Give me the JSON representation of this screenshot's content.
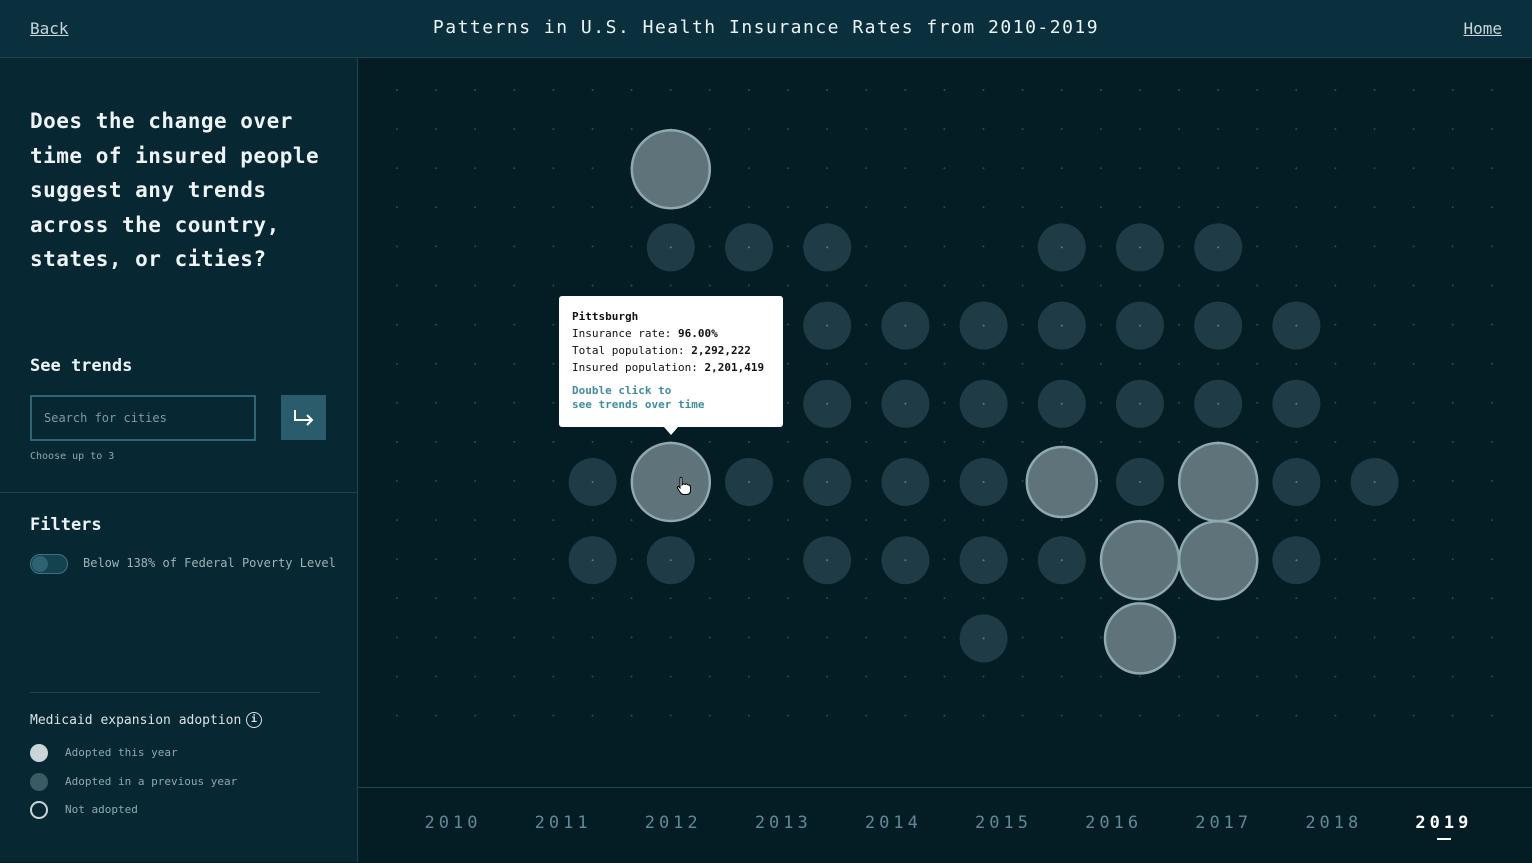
{
  "header": {
    "back_label": "Back",
    "title": "Patterns in U.S. Health Insurance Rates from 2010-2019",
    "home_label": "Home"
  },
  "sidebar": {
    "question": "Does the change over time of insured people suggest any trends across the country, states, or cities?",
    "see_trends_label": "See trends",
    "search_placeholder": "Search for cities",
    "search_value": "",
    "helper_text": "Choose up to 3",
    "filters_label": "Filters",
    "filter_toggle_label": "Below 138% of Federal Poverty Level",
    "filter_toggle_on": false,
    "legend_title": "Medicaid expansion adoption",
    "legend": [
      {
        "label": "Adopted this year",
        "color": "#c9d5d8",
        "style": "filled"
      },
      {
        "label": "Adopted in a previous year",
        "color": "#3b5a64",
        "style": "filled"
      },
      {
        "label": "Not adopted",
        "color": "#c9d5d8",
        "style": "outline"
      }
    ]
  },
  "colors": {
    "header_bg": "#0a2f3d",
    "sidebar_bg": "#072733",
    "main_bg": "#041c24",
    "small_circle": "#1f3c46",
    "large_circle_fill": "#5f737a",
    "large_circle_stroke": "#8fa9b0",
    "grid_dot": "#2a4a54"
  },
  "tooltip": {
    "city": "Pittsburgh",
    "rate_label": "Insurance rate:",
    "rate_value": "96.00%",
    "total_label": "Total population:",
    "total_value": "2,292,222",
    "insured_label": "Insured population:",
    "insured_value": "2,201,419",
    "hint_line1": "Double click to",
    "hint_line2": "see trends over time"
  },
  "timeline": {
    "years": [
      "2010",
      "2011",
      "2012",
      "2013",
      "2014",
      "2015",
      "2016",
      "2017",
      "2018",
      "2019"
    ],
    "selected": "2019"
  },
  "map_cells": [
    {
      "col": 4,
      "row": 1,
      "size": "large"
    },
    {
      "col": 4,
      "row": 2,
      "size": "small"
    },
    {
      "col": 5,
      "row": 2,
      "size": "small"
    },
    {
      "col": 6,
      "row": 2,
      "size": "small"
    },
    {
      "col": 9,
      "row": 2,
      "size": "small"
    },
    {
      "col": 10,
      "row": 2,
      "size": "small"
    },
    {
      "col": 11,
      "row": 2,
      "size": "small"
    },
    {
      "col": 6,
      "row": 3,
      "size": "small"
    },
    {
      "col": 7,
      "row": 3,
      "size": "small"
    },
    {
      "col": 8,
      "row": 3,
      "size": "small"
    },
    {
      "col": 9,
      "row": 3,
      "size": "small"
    },
    {
      "col": 10,
      "row": 3,
      "size": "small"
    },
    {
      "col": 11,
      "row": 3,
      "size": "small"
    },
    {
      "col": 12,
      "row": 3,
      "size": "small"
    },
    {
      "col": 6,
      "row": 4,
      "size": "small"
    },
    {
      "col": 7,
      "row": 4,
      "size": "small"
    },
    {
      "col": 8,
      "row": 4,
      "size": "small"
    },
    {
      "col": 9,
      "row": 4,
      "size": "small"
    },
    {
      "col": 10,
      "row": 4,
      "size": "small"
    },
    {
      "col": 11,
      "row": 4,
      "size": "small"
    },
    {
      "col": 12,
      "row": 4,
      "size": "small"
    },
    {
      "col": 3,
      "row": 5,
      "size": "small"
    },
    {
      "col": 4,
      "row": 5,
      "size": "large",
      "hovered": true
    },
    {
      "col": 5,
      "row": 5,
      "size": "small"
    },
    {
      "col": 6,
      "row": 5,
      "size": "small"
    },
    {
      "col": 7,
      "row": 5,
      "size": "small"
    },
    {
      "col": 8,
      "row": 5,
      "size": "small"
    },
    {
      "col": 9,
      "row": 5,
      "size": "medium"
    },
    {
      "col": 10,
      "row": 5,
      "size": "small"
    },
    {
      "col": 11,
      "row": 5,
      "size": "large"
    },
    {
      "col": 12,
      "row": 5,
      "size": "small"
    },
    {
      "col": 13,
      "row": 5,
      "size": "small"
    },
    {
      "col": 3,
      "row": 6,
      "size": "small"
    },
    {
      "col": 4,
      "row": 6,
      "size": "small"
    },
    {
      "col": 6,
      "row": 6,
      "size": "small"
    },
    {
      "col": 7,
      "row": 6,
      "size": "small"
    },
    {
      "col": 8,
      "row": 6,
      "size": "small"
    },
    {
      "col": 9,
      "row": 6,
      "size": "small"
    },
    {
      "col": 10,
      "row": 6,
      "size": "large"
    },
    {
      "col": 11,
      "row": 6,
      "size": "large"
    },
    {
      "col": 12,
      "row": 6,
      "size": "small"
    },
    {
      "col": 8,
      "row": 7,
      "size": "small"
    },
    {
      "col": 10,
      "row": 7,
      "size": "medium"
    }
  ]
}
